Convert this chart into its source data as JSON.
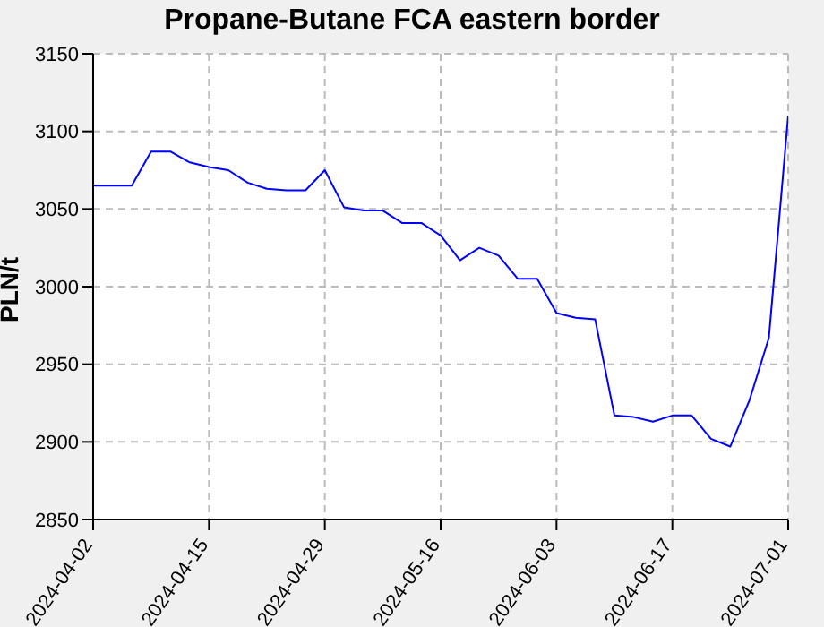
{
  "chart_data": {
    "type": "line",
    "title": "Propane-Butane FCA eastern border",
    "ylabel": "PLN/t",
    "categories": [
      "2024-04-02",
      null,
      null,
      null,
      null,
      null,
      "2024-04-15",
      null,
      null,
      null,
      null,
      null,
      "2024-04-29",
      null,
      null,
      null,
      null,
      null,
      "2024-05-16",
      null,
      null,
      null,
      null,
      null,
      "2024-06-03",
      null,
      null,
      null,
      null,
      null,
      "2024-06-17",
      null,
      null,
      null,
      null,
      null,
      "2024-07-01"
    ],
    "series": [
      {
        "color": "#0000ff",
        "values": [
          3065,
          3065,
          3065,
          3087,
          3087,
          3080,
          3077,
          3075,
          3067,
          3063,
          3062,
          3062,
          3075,
          3051,
          3049,
          3049,
          3041,
          3041,
          3033,
          3017,
          3025,
          3020,
          3005,
          3005,
          2983,
          2980,
          2979,
          2917,
          2916,
          2913,
          2917,
          2917,
          2902,
          2897,
          2927,
          2967,
          3110
        ]
      }
    ],
    "ylim": [
      2850,
      3150
    ],
    "yticks": [
      2850,
      2900,
      2950,
      3000,
      3050,
      3100,
      3150
    ],
    "grid": true,
    "legend": false,
    "marker": "none",
    "line_style": "solid"
  }
}
